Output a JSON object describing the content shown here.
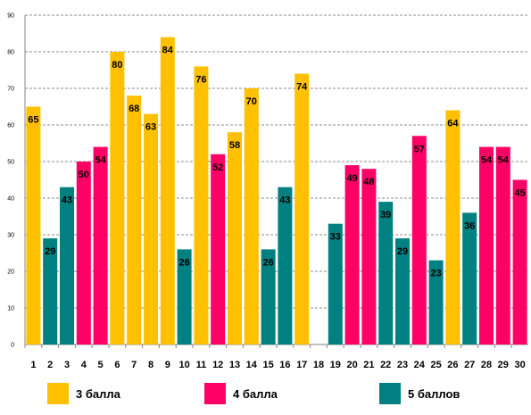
{
  "chart_data": {
    "type": "bar",
    "categories": [
      "1",
      "2",
      "3",
      "4",
      "5",
      "6",
      "7",
      "8",
      "9",
      "10",
      "11",
      "12",
      "13",
      "14",
      "15",
      "16",
      "17",
      "18",
      "19",
      "20",
      "21",
      "22",
      "23",
      "24",
      "25",
      "26",
      "27",
      "28",
      "29",
      "30"
    ],
    "values": [
      65,
      29,
      43,
      50,
      54,
      80,
      68,
      63,
      84,
      26,
      76,
      52,
      58,
      70,
      26,
      43,
      74,
      null,
      33,
      49,
      48,
      39,
      29,
      57,
      23,
      64,
      36,
      54,
      54,
      45
    ],
    "groups": [
      "3 балла",
      "5 баллов",
      "5 баллов",
      "4 балла",
      "4 балла",
      "3 балла",
      "3 балла",
      "3 балла",
      "3 балла",
      "5 баллов",
      "3 балла",
      "4 балла",
      "3 балла",
      "3 балла",
      "5 баллов",
      "5 баллов",
      "3 балла",
      null,
      "5 баллов",
      "4 балла",
      "4 балла",
      "5 баллов",
      "5 баллов",
      "4 балла",
      "5 баллов",
      "3 балла",
      "5 баллов",
      "4 балла",
      "4 балла",
      "4 балла"
    ],
    "ylim": [
      0,
      90
    ],
    "yticks": [
      0,
      10,
      20,
      30,
      40,
      50,
      60,
      70,
      80,
      90
    ],
    "grid": true,
    "legend_position": "bottom",
    "legend": [
      {
        "name": "3 балла",
        "color": "#FFC000"
      },
      {
        "name": "4 балла",
        "color": "#FF0066"
      },
      {
        "name": "5 баллов",
        "color": "#008080"
      }
    ],
    "title": "",
    "xlabel": "",
    "ylabel": ""
  }
}
